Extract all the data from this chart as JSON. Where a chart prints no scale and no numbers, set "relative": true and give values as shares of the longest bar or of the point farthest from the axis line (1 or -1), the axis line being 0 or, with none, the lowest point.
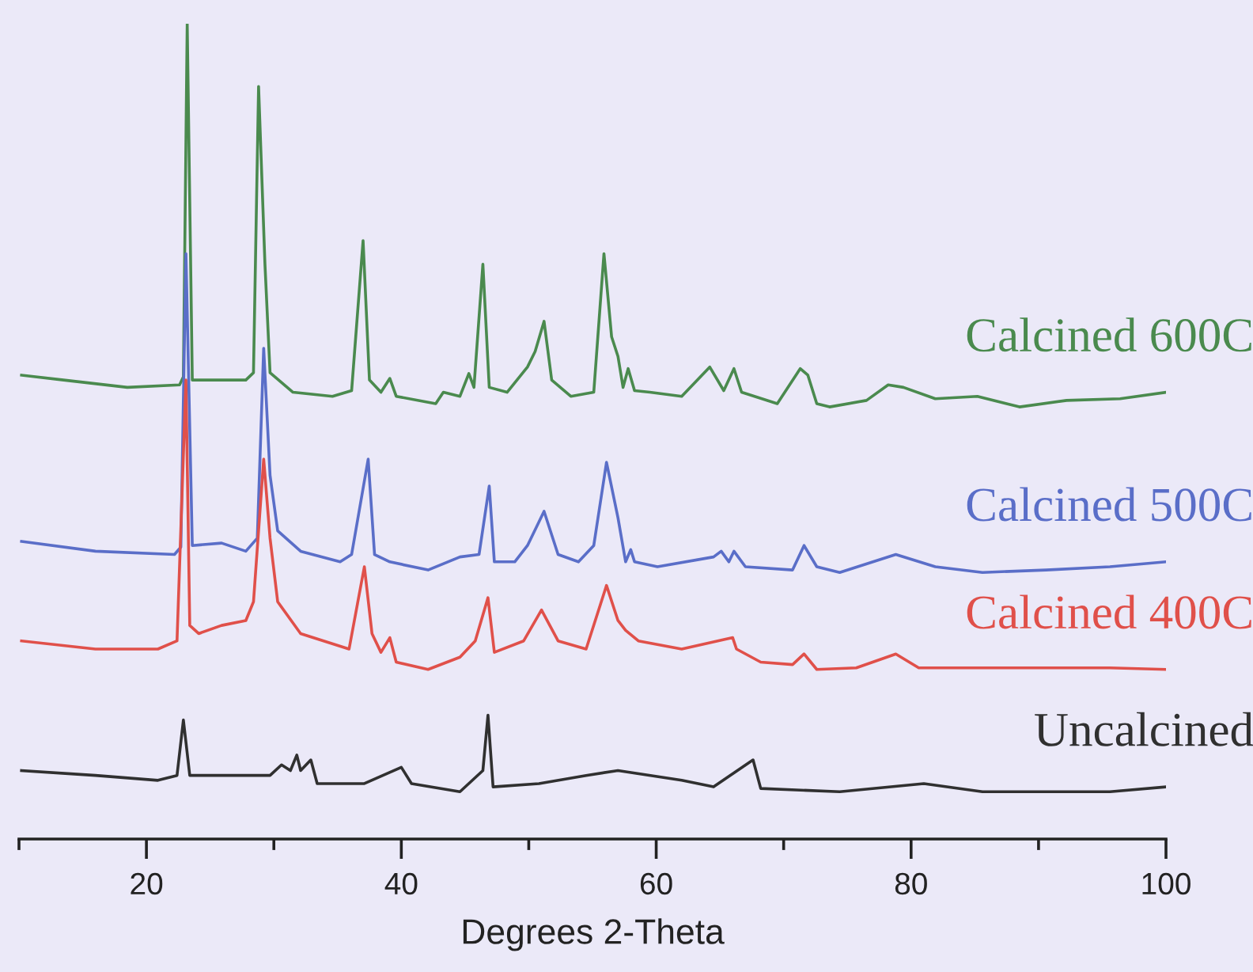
{
  "chart_data": {
    "type": "line",
    "xlabel": "Degrees 2-Theta",
    "relative": true,
    "xlim": [
      10,
      100
    ],
    "xticks": [
      {
        "value": 10,
        "label": null
      },
      20,
      {
        "value": 30,
        "label": null
      },
      40,
      {
        "value": 50,
        "label": null
      },
      60,
      {
        "value": 70,
        "label": null
      },
      80,
      {
        "value": 90,
        "label": null
      },
      100
    ],
    "grid": false,
    "legend": false,
    "marker": "none",
    "line_style": "solid",
    "series": [
      {
        "name": "Calcined 600C",
        "color": "#4a8a4e",
        "x": [
          10.2,
          13.5,
          18.5,
          22.6,
          22.9,
          23.2,
          23.6,
          25.9,
          27.8,
          28.4,
          28.8,
          29.3,
          29.7,
          31.5,
          34.6,
          36.1,
          37.0,
          37.5,
          38.4,
          39.1,
          39.6,
          42.7,
          43.3,
          44.6,
          45.3,
          45.7,
          46.4,
          46.9,
          48.3,
          49.9,
          50.5,
          51.2,
          51.8,
          53.3,
          55.1,
          55.9,
          56.5,
          57.0,
          57.4,
          57.8,
          58.3,
          59.5,
          62.0,
          64.2,
          65.3,
          66.1,
          66.7,
          69.5,
          71.3,
          71.9,
          72.6,
          73.6,
          76.5,
          78.2,
          79.4,
          81.9,
          85.2,
          88.5,
          92.2,
          96.4,
          100
        ],
        "values": [
          0.569,
          0.563,
          0.554,
          0.557,
          0.567,
          1.0,
          0.563,
          0.563,
          0.563,
          0.572,
          0.923,
          0.705,
          0.572,
          0.548,
          0.543,
          0.55,
          0.734,
          0.563,
          0.548,
          0.565,
          0.543,
          0.534,
          0.548,
          0.543,
          0.571,
          0.554,
          0.705,
          0.554,
          0.548,
          0.579,
          0.598,
          0.635,
          0.563,
          0.543,
          0.548,
          0.718,
          0.616,
          0.592,
          0.554,
          0.577,
          0.55,
          0.548,
          0.543,
          0.579,
          0.55,
          0.577,
          0.548,
          0.534,
          0.577,
          0.569,
          0.534,
          0.53,
          0.538,
          0.557,
          0.554,
          0.54,
          0.543,
          0.53,
          0.538,
          0.54,
          0.548
        ]
      },
      {
        "name": "Calcined 500C",
        "color": "#5a6ec8",
        "x": [
          10.2,
          16.0,
          22.2,
          22.7,
          23.1,
          23.6,
          25.9,
          27.8,
          28.7,
          29.2,
          29.7,
          30.3,
          32.1,
          35.2,
          36.1,
          37.4,
          37.9,
          39.1,
          42.1,
          44.6,
          46.1,
          46.9,
          47.3,
          48.9,
          49.9,
          51.2,
          52.3,
          53.9,
          55.1,
          56.1,
          57.0,
          57.6,
          58.0,
          58.3,
          60.1,
          64.5,
          65.1,
          65.7,
          66.1,
          67.0,
          70.7,
          71.6,
          72.6,
          74.4,
          78.8,
          81.9,
          85.6,
          90.6,
          95.6,
          100
        ],
        "values": [
          0.365,
          0.353,
          0.349,
          0.358,
          0.718,
          0.36,
          0.363,
          0.353,
          0.369,
          0.602,
          0.446,
          0.378,
          0.353,
          0.34,
          0.349,
          0.466,
          0.349,
          0.34,
          0.33,
          0.346,
          0.349,
          0.433,
          0.34,
          0.34,
          0.36,
          0.402,
          0.349,
          0.34,
          0.36,
          0.462,
          0.394,
          0.34,
          0.355,
          0.34,
          0.334,
          0.346,
          0.353,
          0.34,
          0.353,
          0.334,
          0.33,
          0.36,
          0.334,
          0.327,
          0.349,
          0.334,
          0.327,
          0.33,
          0.334,
          0.34
        ]
      },
      {
        "name": "Calcined 400C",
        "color": "#e0504a",
        "x": [
          10.2,
          16.0,
          20.9,
          22.4,
          23.1,
          23.4,
          24.1,
          25.9,
          27.8,
          28.4,
          29.2,
          29.7,
          30.3,
          32.1,
          35.9,
          37.1,
          37.7,
          38.4,
          39.1,
          39.6,
          42.1,
          44.6,
          45.8,
          46.8,
          47.3,
          49.6,
          51.0,
          52.3,
          54.5,
          56.1,
          57.0,
          57.6,
          58.6,
          62.0,
          66.0,
          66.3,
          68.2,
          70.7,
          71.6,
          72.6,
          75.7,
          78.8,
          80.6,
          85.6,
          95.6,
          100
        ],
        "values": [
          0.243,
          0.233,
          0.233,
          0.243,
          0.563,
          0.262,
          0.252,
          0.262,
          0.268,
          0.291,
          0.466,
          0.369,
          0.291,
          0.252,
          0.233,
          0.334,
          0.252,
          0.229,
          0.247,
          0.217,
          0.208,
          0.223,
          0.243,
          0.296,
          0.229,
          0.243,
          0.281,
          0.243,
          0.233,
          0.311,
          0.268,
          0.256,
          0.243,
          0.233,
          0.247,
          0.233,
          0.217,
          0.214,
          0.227,
          0.208,
          0.21,
          0.227,
          0.21,
          0.21,
          0.21,
          0.208
        ]
      },
      {
        "name": "Uncalcined",
        "color": "#303030",
        "x": [
          10.2,
          16.0,
          20.9,
          22.4,
          22.9,
          23.4,
          25.9,
          29.7,
          30.6,
          31.3,
          31.8,
          32.1,
          32.9,
          33.4,
          37.1,
          40.0,
          40.8,
          44.6,
          46.4,
          46.8,
          47.2,
          50.8,
          54.5,
          57.0,
          62.0,
          64.5,
          67.6,
          68.2,
          74.4,
          81.0,
          85.6,
          95.6,
          100
        ],
        "values": [
          0.084,
          0.078,
          0.072,
          0.078,
          0.146,
          0.078,
          0.078,
          0.078,
          0.091,
          0.084,
          0.103,
          0.084,
          0.097,
          0.068,
          0.068,
          0.088,
          0.068,
          0.058,
          0.084,
          0.152,
          0.064,
          0.068,
          0.078,
          0.084,
          0.072,
          0.064,
          0.097,
          0.062,
          0.058,
          0.068,
          0.058,
          0.058,
          0.064
        ]
      }
    ]
  }
}
